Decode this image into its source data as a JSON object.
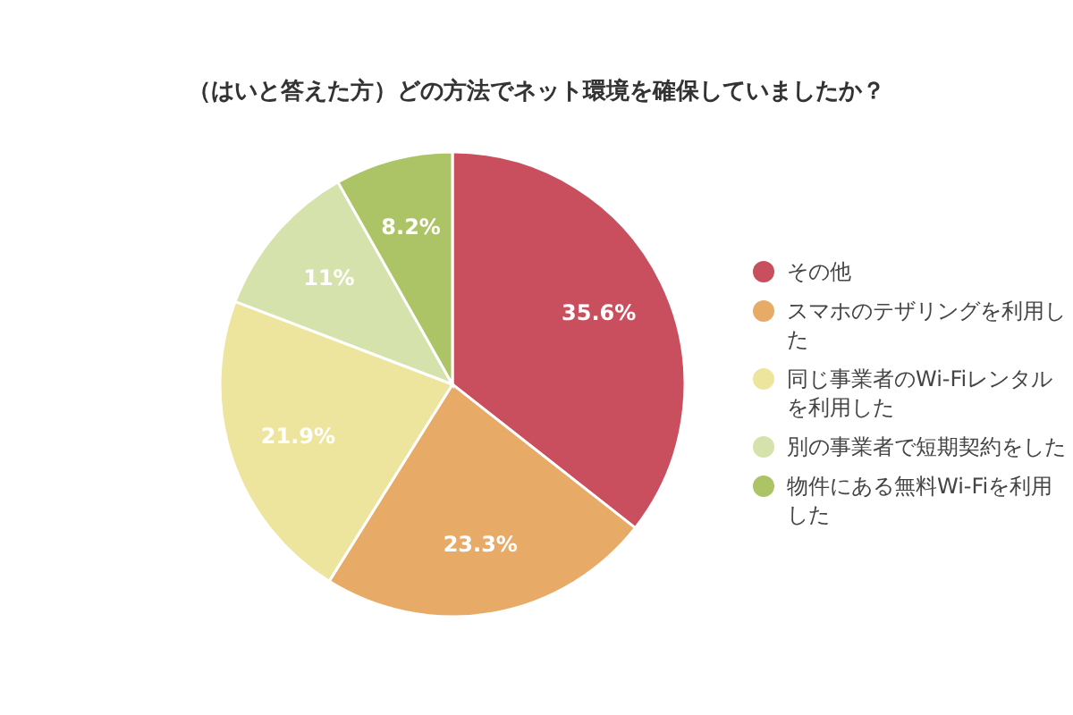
{
  "chart_data": {
    "type": "pie",
    "title": "（はいと答えた方）どの方法でネット環境を確保していましたか？",
    "categories": [
      "その他",
      "スマホのテザリングを利用した",
      "同じ事業者のWi-Fiレンタルを利用した",
      "別の事業者で短期契約をした",
      "物件にある無料Wi-Fiを利用した"
    ],
    "values": [
      35.6,
      23.3,
      21.9,
      11,
      8.2
    ],
    "colors": [
      "#c94f5f",
      "#e8ab67",
      "#ede59d",
      "#d5e2ab",
      "#adc466"
    ],
    "value_labels": [
      "35.6%",
      "23.3%",
      "21.9%",
      "11%",
      "8.2%"
    ],
    "legend": "right"
  }
}
